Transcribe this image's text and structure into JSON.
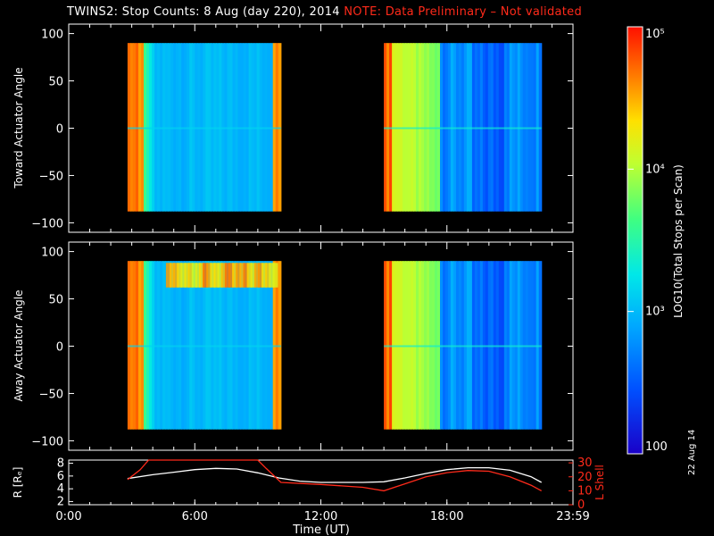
{
  "header": {
    "title": "TWINS2: Stop Counts:  8 Aug (day 220), 2014",
    "note": "NOTE: Data Preliminary – Not validated"
  },
  "footer": {
    "datestamp": "22 Aug 14"
  },
  "chart_data": [
    {
      "type": "heatmap",
      "ylabel": "Toward Actuator Angle",
      "ylim": [
        -110,
        110
      ],
      "yticks": [
        "100",
        "50",
        "0",
        "−50",
        "−100"
      ],
      "yticks_values": [
        100,
        50,
        0,
        -50,
        -100
      ],
      "x_hours_range": [
        0,
        24
      ],
      "data_blocks": [
        {
          "start_hour": 2.8,
          "end_hour": 10.1,
          "angle_range": [
            -88,
            90
          ]
        },
        {
          "start_hour": 15.0,
          "end_hour": 22.5,
          "angle_range": [
            -88,
            90
          ]
        }
      ]
    },
    {
      "type": "heatmap",
      "ylabel": "Away Actuator Angle",
      "ylim": [
        -110,
        110
      ],
      "yticks": [
        "100",
        "50",
        "0",
        "−50",
        "−100"
      ],
      "yticks_values": [
        100,
        50,
        0,
        -50,
        -100
      ],
      "x_hours_range": [
        0,
        24
      ],
      "data_blocks": [
        {
          "start_hour": 2.8,
          "end_hour": 10.1,
          "angle_range": [
            -88,
            90
          ]
        },
        {
          "start_hour": 15.0,
          "end_hour": 22.5,
          "angle_range": [
            -88,
            90
          ]
        }
      ]
    },
    {
      "type": "line",
      "ylabel_left": "R [Rₑ]",
      "ylabel_right": "L Shell",
      "xlabel": "Time (UT)",
      "xticks": [
        "0:00",
        "6:00",
        "12:00",
        "18:00",
        "23:59"
      ],
      "xticks_hours": [
        0,
        6,
        12,
        18,
        24
      ],
      "yticks_left": [
        "8",
        "6",
        "4",
        "2"
      ],
      "yticks_left_values": [
        8,
        6,
        4,
        2
      ],
      "ylim_left": [
        1.5,
        8.5
      ],
      "yticks_right": [
        "30",
        "20",
        "10",
        "0"
      ],
      "yticks_right_values": [
        30,
        20,
        10,
        0
      ],
      "ylim_right": [
        0,
        32
      ],
      "series": [
        {
          "color": "#ffffff",
          "axis": "left",
          "x": [
            2.8,
            4,
            5,
            6,
            7,
            8,
            9,
            10,
            11,
            12,
            13,
            14,
            15,
            16,
            17,
            18,
            19,
            20,
            21,
            22,
            22.5
          ],
          "y": [
            5.6,
            6.2,
            6.6,
            7.0,
            7.2,
            7.1,
            6.5,
            5.7,
            5.2,
            5.0,
            5.0,
            5.0,
            5.1,
            5.7,
            6.4,
            7.0,
            7.3,
            7.3,
            6.9,
            5.9,
            5.0
          ]
        },
        {
          "color": "#ff2a1a",
          "axis": "right",
          "x": [
            2.8,
            3.4,
            3.8,
            9.0,
            9.4,
            10.1,
            12,
            14,
            15.0,
            16,
            17,
            18,
            19,
            20,
            21,
            22,
            22.5
          ],
          "y": [
            18,
            25,
            32,
            32,
            26,
            16,
            14.5,
            12.5,
            10,
            15,
            20,
            23,
            24.5,
            24,
            20,
            14,
            10
          ]
        }
      ]
    }
  ],
  "colorbar": {
    "label": "LOG10(Total Stops per Scan)",
    "ticks": [
      "100",
      "10³",
      "10⁴",
      "10⁵"
    ],
    "ticks_values": [
      100,
      1000,
      10000,
      100000
    ]
  }
}
